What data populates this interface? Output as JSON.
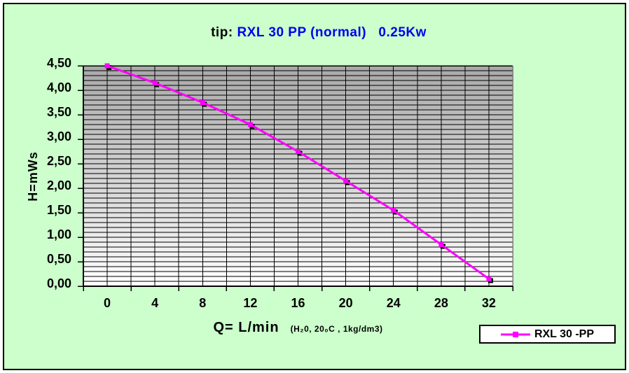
{
  "title": {
    "prefix": "tip: ",
    "main": "RXL 30 PP (normal)   0.25Kw"
  },
  "colors": {
    "chart_background": "#ccffcc",
    "title_accent": "#0000ee",
    "series_line": "#ff00ff",
    "plot_gradient_top": "#a8a8a8",
    "plot_gradient_bottom": "#ffffff",
    "gridline": "#000000",
    "axis": "#000000",
    "legend_background": "#ffffff"
  },
  "chart_data": {
    "type": "line",
    "title": "tip: RXL 30 PP (normal)   0.25Kw",
    "x": [
      0,
      4,
      8,
      12,
      16,
      20,
      24,
      28,
      32
    ],
    "series": [
      {
        "name": "RXL 30 -PP",
        "values": [
          4.5,
          4.15,
          3.75,
          3.3,
          2.75,
          2.15,
          1.55,
          0.85,
          0.15
        ]
      }
    ],
    "xlabel": "Q= L/min",
    "xlabel_note": "(H₂0, 20₀C , 1kg/dm3)",
    "ylabel": "H=mWs",
    "ylim": [
      0,
      4.5
    ],
    "y_tick_step": 0.5,
    "y_minor_step": 0.1,
    "x_minor_step": 2,
    "y_tick_labels": [
      "0,00",
      "0,50",
      "1,00",
      "1,50",
      "2,00",
      "2,50",
      "3,00",
      "3,50",
      "4,00",
      "4,50"
    ],
    "x_tick_labels": [
      "0",
      "4",
      "8",
      "12",
      "16",
      "20",
      "24",
      "28",
      "32"
    ],
    "grid": true,
    "marker": "square",
    "legend_position": "bottom-right"
  },
  "legend": {
    "label": "RXL 30 -PP"
  }
}
